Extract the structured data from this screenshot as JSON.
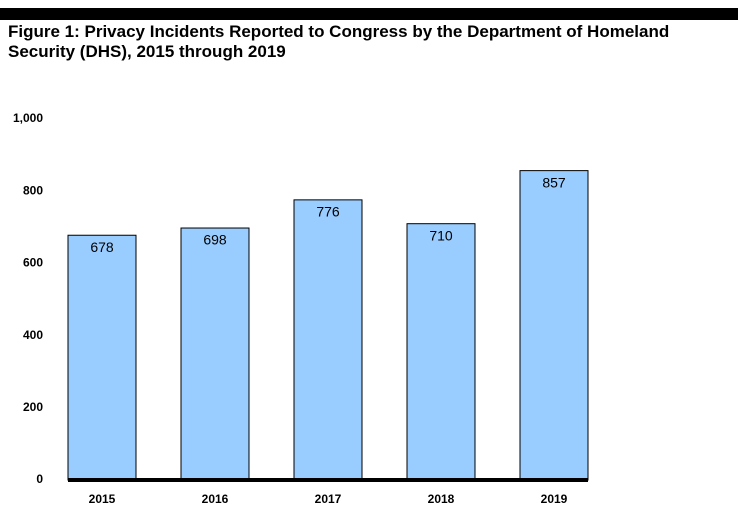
{
  "chart_data": {
    "type": "bar",
    "title": "Figure 1: Privacy Incidents Reported to Congress by the Department of Homeland Security (DHS), 2015 through 2019",
    "categories": [
      "2015",
      "2016",
      "2017",
      "2018",
      "2019"
    ],
    "values": [
      678,
      698,
      776,
      710,
      857
    ],
    "color": "#99ccff",
    "ylim": [
      0,
      1000
    ],
    "yticks": [
      0,
      200,
      400,
      600,
      800,
      {
        "value": 1000,
        "label": "1,000"
      }
    ],
    "grid": false
  }
}
